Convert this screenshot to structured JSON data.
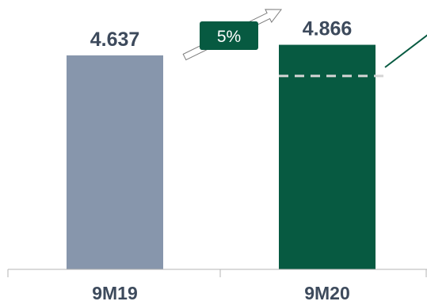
{
  "colors": {
    "bar_9M19": "#8796ac",
    "bar_9M20": "#075a41",
    "label_text": "#3d4a5c",
    "axis": "#b4b4b4",
    "dashed_line": "#d5d5d5",
    "growth_badge_fill": "#075a41",
    "growth_badge_text": "#ffffff",
    "arrow_stroke": "#7d7d7d"
  },
  "chart_data": {
    "type": "bar",
    "categories": [
      "9M19",
      "9M20"
    ],
    "values": [
      4.637,
      4.866
    ],
    "value_labels": [
      "4.637",
      "4.866"
    ],
    "ylim": [
      0,
      5.15
    ],
    "reference_dashed_value": 4.637,
    "growth_label": "5%",
    "title": "",
    "xlabel": "",
    "ylabel": "",
    "grid": false
  }
}
